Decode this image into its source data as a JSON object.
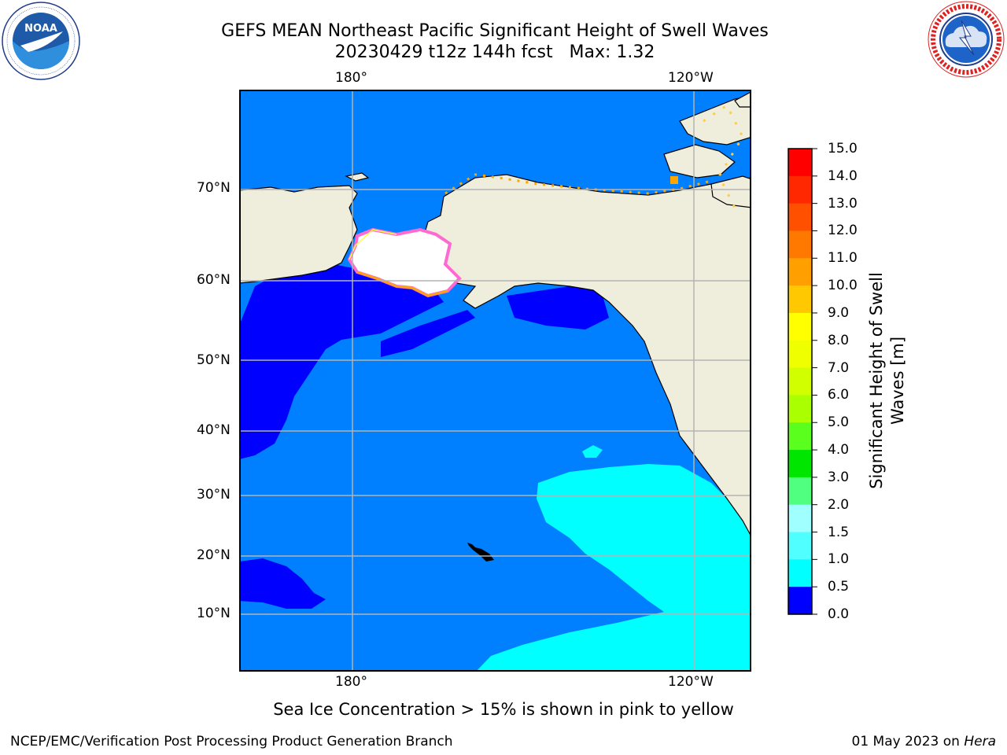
{
  "title_line1": "GEFS MEAN Northeast Pacific Significant Height of Swell Waves",
  "title_line2": "20230429 t12z 144h fcst   Max: 1.32",
  "logos": {
    "left_name": "noaa-logo",
    "left_text": "NOAA",
    "left_ring_text": "NATIONAL OCEANIC AND ATMOSPHERIC ADMINISTRATION · U.S. DEPARTMENT OF COMMERCE",
    "right_name": "nws-logo",
    "right_ring_text": "NATIONAL WEATHER SERVICE"
  },
  "map": {
    "lon_ticks": [
      "180°",
      "120°W"
    ],
    "lat_ticks": [
      "70°N",
      "60°N",
      "50°N",
      "40°N",
      "30°N",
      "20°N",
      "10°N"
    ],
    "land_color": "#efeddc",
    "ocean_colors": {
      "0.0-0.5": "#0000ff",
      "0.5-1.0": "#0080ff",
      "1.0-1.5": "#00ffff"
    },
    "sea_ice_colors": [
      "#ff69d0",
      "#ffa500",
      "#ffff40"
    ]
  },
  "colorbar": {
    "label_line1": "Significant Height of Swell",
    "label_line2": "Waves [m]",
    "ticks": [
      "15.0",
      "14.0",
      "13.0",
      "12.0",
      "11.0",
      "10.0",
      "9.0",
      "8.0",
      "7.0",
      "6.0",
      "5.0",
      "4.0",
      "3.0",
      "2.0",
      "1.5",
      "1.0",
      "0.5",
      "0.0"
    ],
    "colors": [
      "#ff0000",
      "#ff2800",
      "#ff5000",
      "#ff7800",
      "#ffa000",
      "#ffc800",
      "#ffff00",
      "#f0ff00",
      "#d2ff00",
      "#aaff00",
      "#5aff1e",
      "#00e600",
      "#50ff80",
      "#a0ffff",
      "#50ffff",
      "#00ffff",
      "#0080ff",
      "#0000ff"
    ]
  },
  "footer": {
    "sea_ice_note": "Sea Ice Concentration > 15% is shown in pink to yellow",
    "left": "NCEP/EMC/Verification Post Processing Product Generation Branch",
    "right_prefix": "01 May 2023 on ",
    "right_machine": "Hera"
  }
}
